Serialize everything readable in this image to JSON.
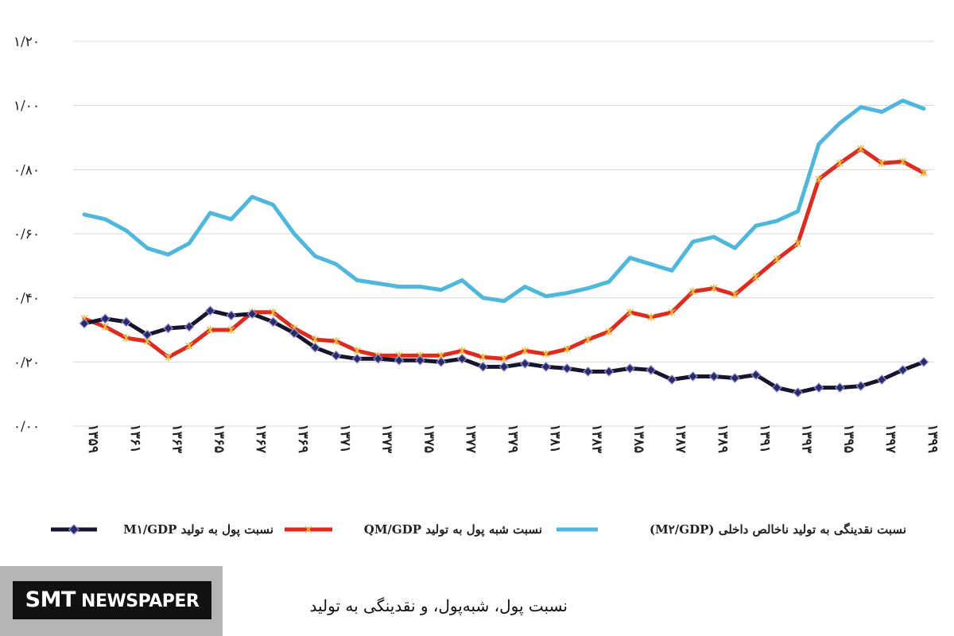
{
  "chart_data": {
    "type": "line",
    "title": "",
    "xlabel": "",
    "ylabel": "",
    "ylim": [
      0,
      1.2
    ],
    "y_ticks": [
      {
        "value": 0.0,
        "label": "۰/۰۰"
      },
      {
        "value": 0.2,
        "label": "۰/۲۰"
      },
      {
        "value": 0.4,
        "label": "۰/۴۰"
      },
      {
        "value": 0.6,
        "label": "۰/۶۰"
      },
      {
        "value": 0.8,
        "label": "۰/۸۰"
      },
      {
        "value": 1.0,
        "label": "۱/۰۰"
      },
      {
        "value": 1.2,
        "label": "۱/۲۰"
      }
    ],
    "x": [
      1359,
      1360,
      1361,
      1362,
      1363,
      1364,
      1365,
      1366,
      1367,
      1368,
      1369,
      1370,
      1371,
      1372,
      1373,
      1374,
      1375,
      1376,
      1377,
      1378,
      1379,
      1380,
      1381,
      1382,
      1383,
      1384,
      1385,
      1386,
      1387,
      1388,
      1389,
      1390,
      1391,
      1392,
      1393,
      1394,
      1395,
      1396,
      1397,
      1398,
      1399
    ],
    "x_tick_labels": [
      "۱۳۵۹",
      "۱۳۶۱",
      "۱۳۶۳",
      "۱۳۶۵",
      "۱۳۶۷",
      "۱۳۶۹",
      "۱۳۷۱",
      "۱۳۷۳",
      "۱۳۷۵",
      "۱۳۷۷",
      "۱۳۷۹",
      "۱۳۸۱",
      "۱۳۸۳",
      "۱۳۸۵",
      "۱۳۸۷",
      "۱۳۸۹",
      "۱۳۹۱",
      "۱۳۹۳",
      "۱۳۹۵",
      "۱۳۹۷",
      "۱۳۹۹"
    ],
    "grid": true,
    "legend_position": "bottom",
    "series": [
      {
        "name": "نسبت پول به تولید M۱/GDP",
        "color": "#15152e",
        "marker": "diamond",
        "values": [
          0.32,
          0.335,
          0.325,
          0.285,
          0.305,
          0.31,
          0.36,
          0.345,
          0.35,
          0.325,
          0.29,
          0.245,
          0.22,
          0.21,
          0.21,
          0.205,
          0.205,
          0.2,
          0.21,
          0.185,
          0.185,
          0.195,
          0.185,
          0.18,
          0.17,
          0.17,
          0.18,
          0.175,
          0.145,
          0.155,
          0.155,
          0.15,
          0.16,
          0.12,
          0.105,
          0.12,
          0.12,
          0.125,
          0.145,
          0.175,
          0.2
        ]
      },
      {
        "name": "نسبت شبه پول به تولید QM/GDP",
        "color": "#dd2b1f",
        "marker": "star",
        "values": [
          0.335,
          0.31,
          0.275,
          0.265,
          0.215,
          0.25,
          0.3,
          0.3,
          0.355,
          0.355,
          0.305,
          0.27,
          0.265,
          0.235,
          0.22,
          0.22,
          0.22,
          0.22,
          0.235,
          0.215,
          0.21,
          0.235,
          0.225,
          0.24,
          0.27,
          0.295,
          0.355,
          0.34,
          0.355,
          0.42,
          0.43,
          0.41,
          0.465,
          0.52,
          0.57,
          0.77,
          0.82,
          0.865,
          0.82,
          0.825,
          0.79
        ]
      },
      {
        "name": "نسبت نقدینگی به تولید ناخالص داخلی (M۲/GDP)",
        "color": "#4fb6dc",
        "marker": "none",
        "values": [
          0.66,
          0.645,
          0.61,
          0.555,
          0.535,
          0.57,
          0.665,
          0.645,
          0.715,
          0.69,
          0.6,
          0.53,
          0.505,
          0.455,
          0.445,
          0.435,
          0.435,
          0.425,
          0.455,
          0.4,
          0.39,
          0.435,
          0.405,
          0.415,
          0.43,
          0.45,
          0.525,
          0.505,
          0.485,
          0.575,
          0.59,
          0.555,
          0.625,
          0.64,
          0.67,
          0.88,
          0.945,
          0.995,
          0.98,
          1.015,
          0.99
        ]
      }
    ]
  },
  "brand": {
    "part1": "SMT",
    "part2": " NEWSPAPER"
  },
  "caption": "نسبت پول، شبه‌پول، و نقدینگی به تولید"
}
